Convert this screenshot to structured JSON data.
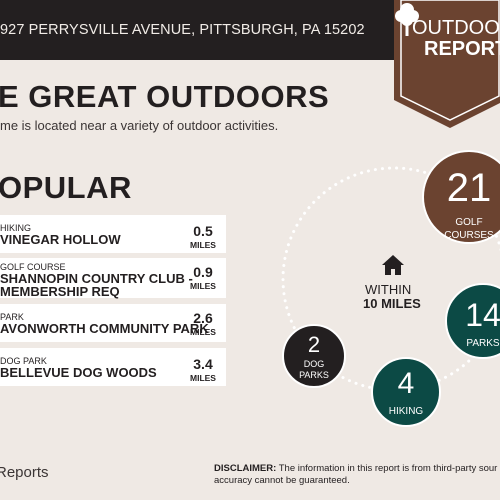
{
  "header": {
    "address": "927 PERRYSVILLE AVENUE, PITTSBURGH, PA 15202"
  },
  "badge": {
    "line1": "OUTDOO",
    "line2": "REPORT",
    "icon": "tree-icon"
  },
  "main": {
    "title": "E GREAT OUTDOORS",
    "subtitle": "me is located near a variety of outdoor activities."
  },
  "popular": {
    "title": "OPULAR",
    "items": [
      {
        "category": "HIKING",
        "name": "VINEGAR HOLLOW",
        "name2": "",
        "distance": "0.5",
        "unit": "MILES"
      },
      {
        "category": "GOLF COURSE",
        "name": "SHANNOPIN COUNTRY CLUB -",
        "name2": "MEMBERSHIP REQ",
        "distance": "0.9",
        "unit": "MILES"
      },
      {
        "category": "PARK",
        "name": "AVONWORTH COMMUNITY PARK",
        "name2": "",
        "distance": "2.6",
        "unit": "MILES"
      },
      {
        "category": "DOG PARK",
        "name": "BELLEVUE DOG WOODS",
        "name2": "",
        "distance": "3.4",
        "unit": "MILES"
      }
    ]
  },
  "summary": {
    "center_line1": "WITHIN",
    "center_line2": "10 MILES",
    "center_icon": "home-icon",
    "golf": {
      "count": "21",
      "label": "GOLF",
      "label2": "COURSES"
    },
    "parks": {
      "count": "14",
      "label": "PARKS"
    },
    "hiking": {
      "count": "4",
      "label": "HIKING"
    },
    "dog": {
      "count": "2",
      "label": "DOG",
      "label2": "PARKS"
    }
  },
  "footer": {
    "brand": "Reports",
    "disclaimer_label": "DISCLAIMER:",
    "disclaimer_text": " The information in this report is from third-party sour",
    "disclaimer_line2": "accuracy cannot be guaranteed."
  },
  "colors": {
    "dark": "#231f20",
    "brown": "#6b4330",
    "teal": "#0c4a45",
    "background": "#efe9e4"
  }
}
